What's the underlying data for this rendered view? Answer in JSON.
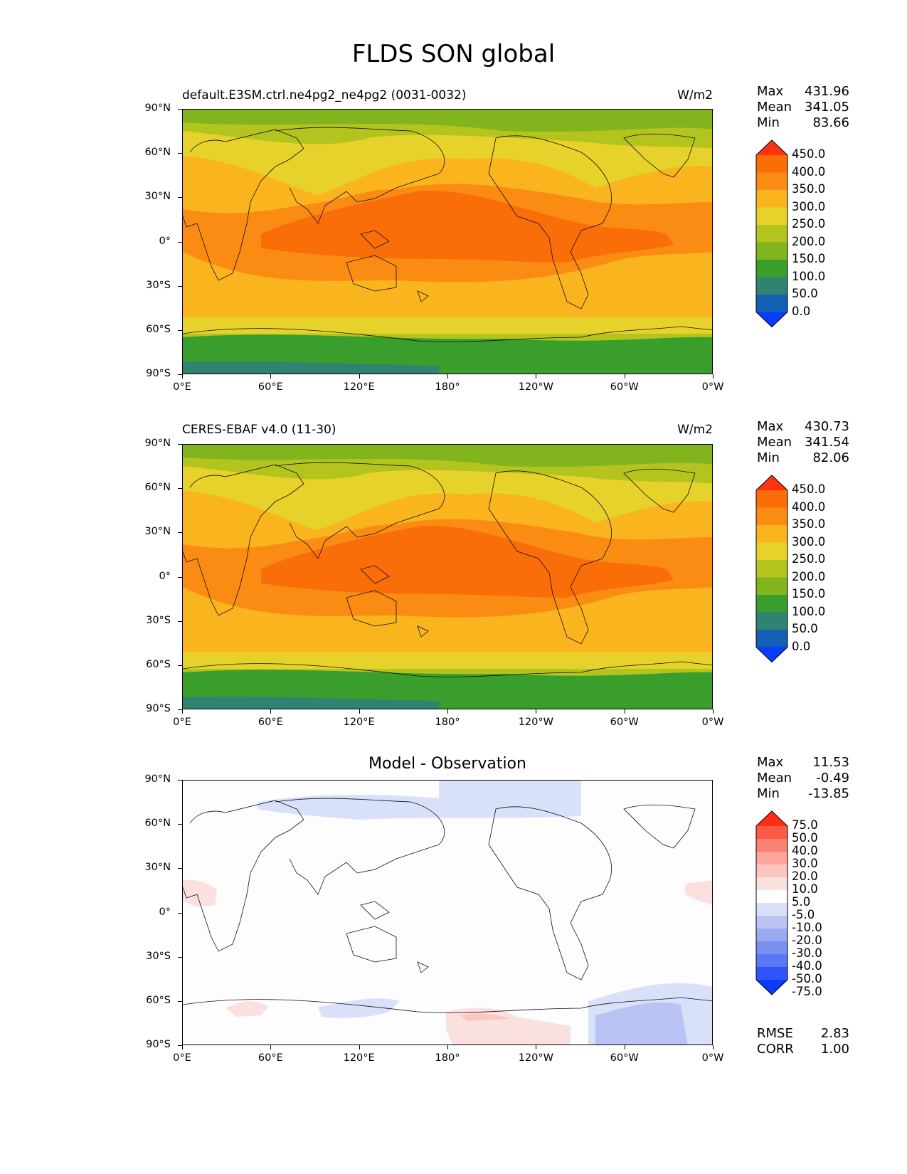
{
  "title": "FLDS SON global",
  "unit_label": "W/m2",
  "lat_labels": [
    "90°N",
    "60°N",
    "30°N",
    "0°",
    "30°S",
    "60°S",
    "90°S"
  ],
  "lon_labels": [
    "0°E",
    "60°E",
    "120°E",
    "180°",
    "120°W",
    "60°W",
    "0°W"
  ],
  "colors": {
    "abs_levels": [
      "#0a3cff",
      "#1460b4",
      "#2f8370",
      "#3a9e2c",
      "#82b41e",
      "#b4c41e",
      "#e6d22a",
      "#fab41e",
      "#fa8c14",
      "#fa6e0a",
      "#ff3214"
    ],
    "diff_levels": [
      "#0a3cff",
      "#2d55fa",
      "#5a78f5",
      "#7890f0",
      "#9aaaf0",
      "#b9c4f5",
      "#d9e0fa",
      "#ffffff",
      "#fbe0e0",
      "#fcc6c0",
      "#fca69c",
      "#fa8272",
      "#fa5a46",
      "#ff2d14"
    ]
  },
  "panels": [
    {
      "name": "model",
      "title_left": "default.E3SM.ctrl.ne4pg2_ne4pg2 (0031-0032)",
      "title_right": "W/m2",
      "stats": [
        {
          "label": "Max",
          "value": "431.96"
        },
        {
          "label": "Mean",
          "value": "341.05"
        },
        {
          "label": "Min",
          "value": "83.66"
        }
      ],
      "colorbar_ticks": [
        "450.0",
        "400.0",
        "350.0",
        "300.0",
        "250.0",
        "200.0",
        "150.0",
        "100.0",
        "50.0",
        "0.0"
      ]
    },
    {
      "name": "observation",
      "title_left": "CERES-EBAF v4.0 (11-30)",
      "title_right": "W/m2",
      "stats": [
        {
          "label": "Max",
          "value": "430.73"
        },
        {
          "label": "Mean",
          "value": "341.54"
        },
        {
          "label": "Min",
          "value": "82.06"
        }
      ],
      "colorbar_ticks": [
        "450.0",
        "400.0",
        "350.0",
        "300.0",
        "250.0",
        "200.0",
        "150.0",
        "100.0",
        "50.0",
        "0.0"
      ]
    },
    {
      "name": "difference",
      "title_center": "Model - Observation",
      "stats": [
        {
          "label": "Max",
          "value": "11.53"
        },
        {
          "label": "Mean",
          "value": "-0.49"
        },
        {
          "label": "Min",
          "value": "-13.85"
        }
      ],
      "colorbar_ticks": [
        "75.0",
        "50.0",
        "40.0",
        "30.0",
        "20.0",
        "10.0",
        "5.0",
        "-5.0",
        "-10.0",
        "-20.0",
        "-30.0",
        "-40.0",
        "-50.0",
        "-75.0"
      ],
      "metrics": [
        {
          "label": "RMSE",
          "value": "2.83"
        },
        {
          "label": "CORR",
          "value": "1.00"
        }
      ]
    }
  ]
}
